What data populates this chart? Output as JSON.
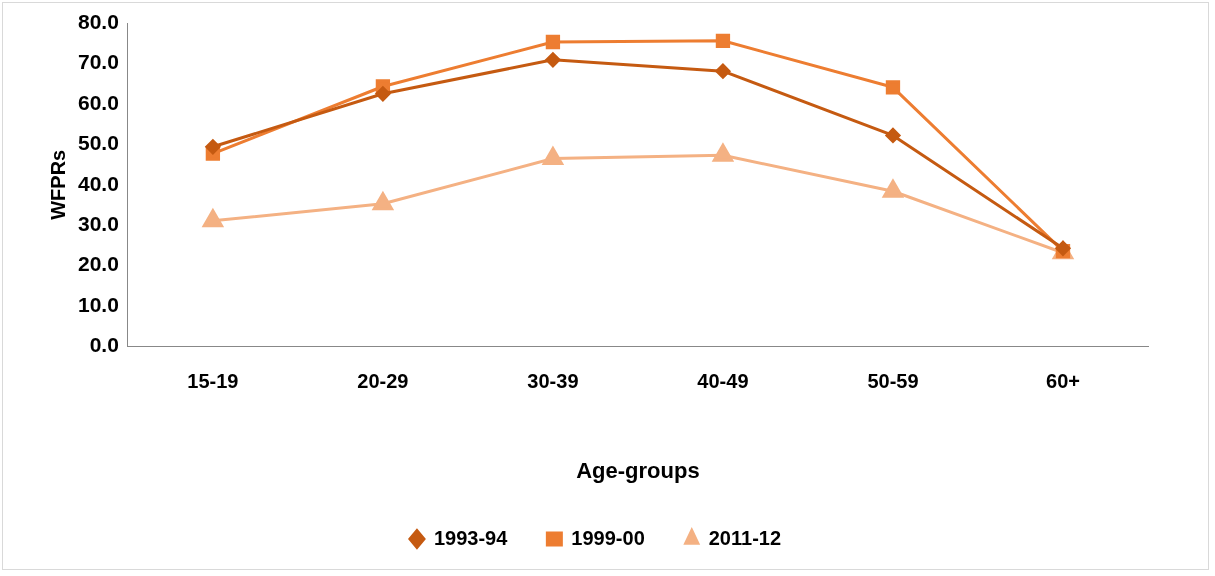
{
  "chart_data": {
    "type": "line",
    "xlabel": "Age-groups",
    "ylabel": "WFPRs",
    "categories": [
      "15-19",
      "20-29",
      "30-39",
      "40-49",
      "50-59",
      "60+"
    ],
    "series": [
      {
        "name": "1993-94",
        "color": "#c55a11",
        "marker": "diamond",
        "values": [
          49.4,
          62.5,
          70.9,
          68.1,
          52.2,
          24.3
        ]
      },
      {
        "name": "1999-00",
        "color": "#ed7d31",
        "marker": "square",
        "values": [
          47.7,
          64.3,
          75.3,
          75.6,
          64.1,
          23.6
        ]
      },
      {
        "name": "2011-12",
        "color": "#f4b183",
        "marker": "triangle",
        "values": [
          31.1,
          35.3,
          46.5,
          47.3,
          38.4,
          23.2
        ]
      }
    ],
    "ylim": [
      0,
      80
    ],
    "yticks": [
      {
        "value": 0,
        "label": "0.0"
      },
      {
        "value": 10,
        "label": "10.0"
      },
      {
        "value": 20,
        "label": "20.0"
      },
      {
        "value": 30,
        "label": "30.0"
      },
      {
        "value": 40,
        "label": "40.0"
      },
      {
        "value": 50,
        "label": "50.0"
      },
      {
        "value": 60,
        "label": "60.0"
      },
      {
        "value": 70,
        "label": "70.0"
      },
      {
        "value": 80,
        "label": "80.0"
      }
    ],
    "grid": false,
    "legend": "bottom",
    "line_style": "solid"
  }
}
